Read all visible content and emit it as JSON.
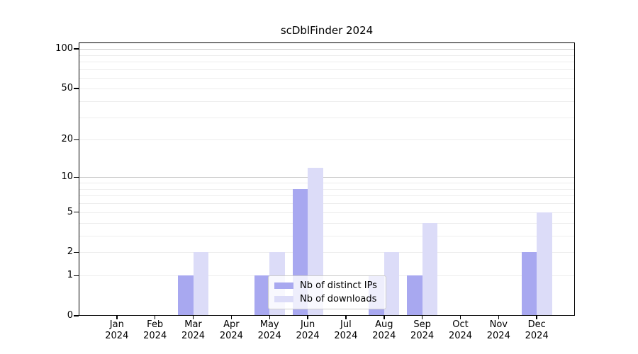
{
  "chart_data": {
    "type": "bar",
    "title": "scDblFinder 2024",
    "categories": [
      "Jan",
      "Feb",
      "Mar",
      "Apr",
      "May",
      "Jun",
      "Jul",
      "Aug",
      "Sep",
      "Oct",
      "Nov",
      "Dec"
    ],
    "year_label": "2024",
    "series": [
      {
        "name": "Nb of distinct IPs",
        "color": "#a8a8f0",
        "values": [
          0,
          0,
          1,
          0,
          1,
          8,
          0,
          1,
          1,
          0,
          0,
          2
        ]
      },
      {
        "name": "Nb of downloads",
        "color": "#dcdcf8",
        "values": [
          0,
          0,
          2,
          0,
          2,
          12,
          0,
          2,
          4,
          0,
          0,
          5
        ]
      }
    ],
    "xlabel": "",
    "ylabel": "",
    "yticks": [
      0,
      1,
      2,
      5,
      10,
      20,
      50,
      100
    ],
    "y_axis": {
      "scale": "log1p",
      "min": 0,
      "max": 112
    },
    "gridlines": {
      "major_values": [
        10,
        100
      ],
      "minor_values": [
        1,
        2,
        3,
        4,
        5,
        6,
        7,
        8,
        9,
        20,
        30,
        40,
        50,
        60,
        70,
        80,
        90
      ]
    },
    "legend": {
      "position": "lower center",
      "background": "rgba(255,255,255,0.8)"
    },
    "colors": {
      "grid_major": "#c9c9c9",
      "grid_minor": "#ededed",
      "axis": "#000000",
      "background": "#ffffff"
    }
  }
}
